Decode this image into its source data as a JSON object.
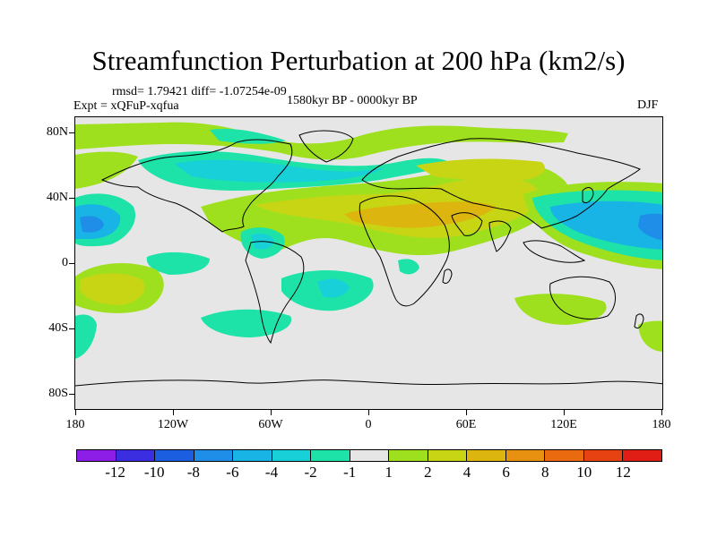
{
  "title": "Streamfunction Perturbation at 200 hPa (km2/s)",
  "stats": "rmsd= 1.79421  diff= -1.07254e-09",
  "experiment": "Expt = xQFuP-xqfua",
  "period": "1580kyr BP - 0000kyr BP",
  "season": "DJF",
  "axes": {
    "lat_labels": [
      "80N",
      "40N",
      "0",
      "40S",
      "80S"
    ],
    "lon_labels": [
      "180",
      "120W",
      "60W",
      "0",
      "60E",
      "120E",
      "180"
    ],
    "lat_range": [
      -90,
      90
    ],
    "lon_range": [
      -180,
      180
    ]
  },
  "colorbar": {
    "colors": [
      "#8c1ee8",
      "#3a2ee0",
      "#1b5fe0",
      "#1f8ee8",
      "#18b4e6",
      "#17d0d8",
      "#1ee3a8",
      "#e6e6e6",
      "#9fe01e",
      "#c8d514",
      "#dcb60e",
      "#e89010",
      "#ea6a10",
      "#e64212",
      "#e01e16"
    ],
    "labels": [
      "-12",
      "-10",
      "-8",
      "-6",
      "-4",
      "-2",
      "-1",
      "1",
      "2",
      "4",
      "6",
      "8",
      "10",
      "12"
    ]
  }
}
